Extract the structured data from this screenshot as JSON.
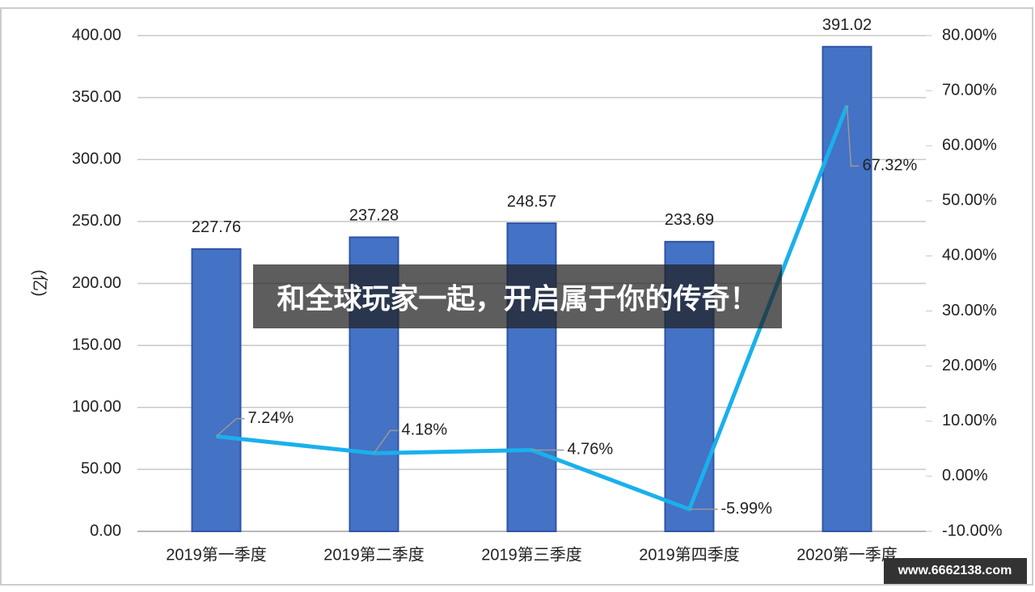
{
  "chart_data": {
    "type": "bar-line",
    "y_label": "(亿)",
    "categories": [
      "2019第一季度",
      "2019第二季度",
      "2019第三季度",
      "2019第四季度",
      "2020第一季度"
    ],
    "series": [
      {
        "type": "bar",
        "color": "#4472c4",
        "values": [
          227.76,
          237.28,
          248.57,
          233.69,
          391.02
        ]
      },
      {
        "type": "line",
        "axis": "y2",
        "color": "#1ab0ec",
        "values": [
          7.24,
          4.18,
          4.76,
          -5.99,
          67.32
        ],
        "value_labels": [
          "7.24%",
          "4.18%",
          "4.76%",
          "-5.99%",
          "67.32%"
        ]
      }
    ],
    "ylim": [
      0,
      400
    ],
    "yticks": [
      {
        "value": 0,
        "label": "0.00"
      },
      {
        "value": 50,
        "label": "50.00"
      },
      {
        "value": 100,
        "label": "100.00"
      },
      {
        "value": 150,
        "label": "150.00"
      },
      {
        "value": 200,
        "label": "200.00"
      },
      {
        "value": 250,
        "label": "250.00"
      },
      {
        "value": 300,
        "label": "300.00"
      },
      {
        "value": 350,
        "label": "350.00"
      },
      {
        "value": 400,
        "label": "400.00"
      }
    ],
    "y2lim": [
      -10,
      80
    ],
    "y2ticks": [
      {
        "value": -10,
        "label": "-10.00%"
      },
      {
        "value": 0,
        "label": "0.00%"
      },
      {
        "value": 10,
        "label": "10.00%"
      },
      {
        "value": 20,
        "label": "20.00%"
      },
      {
        "value": 30,
        "label": "30.00%"
      },
      {
        "value": 40,
        "label": "40.00%"
      },
      {
        "value": 50,
        "label": "50.00%"
      },
      {
        "value": 60,
        "label": "60.00%"
      },
      {
        "value": 70,
        "label": "70.00%"
      },
      {
        "value": 80,
        "label": "80.00%"
      }
    ],
    "grid": true,
    "banner": "和全球玩家一起，开启属于你的传奇！",
    "watermark": "www.6662138.com"
  }
}
